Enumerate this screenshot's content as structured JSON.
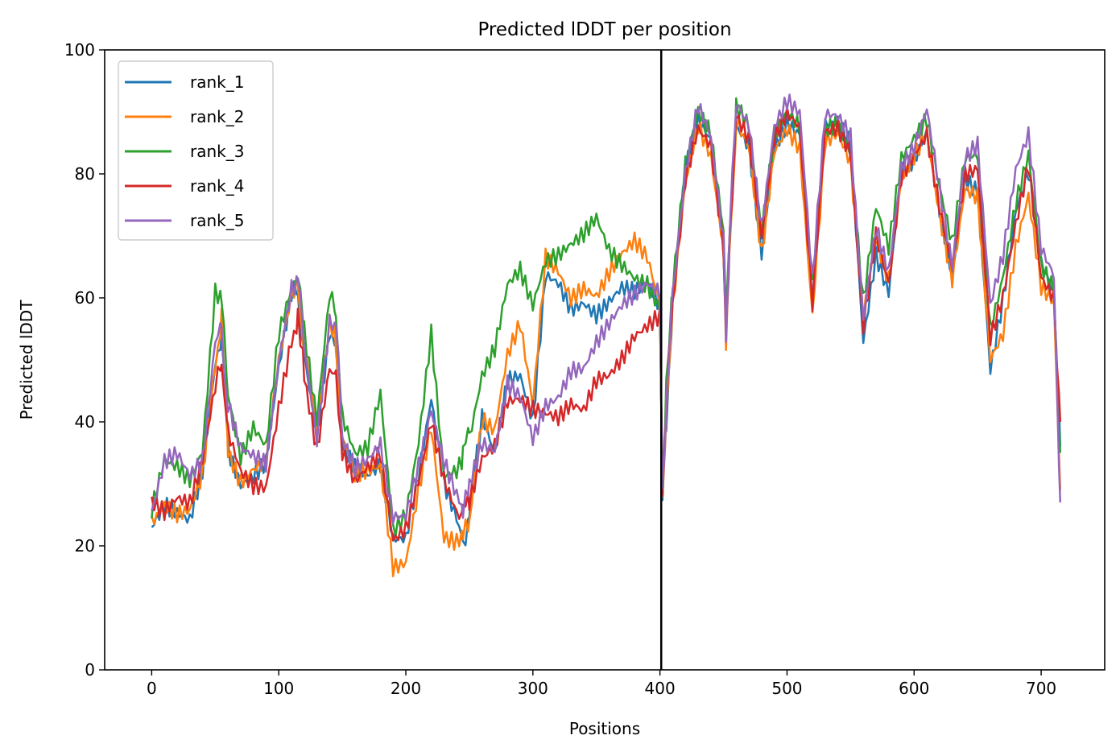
{
  "chart_data": {
    "type": "line",
    "title": "Predicted lDDT per position",
    "xlabel": "Positions",
    "ylabel": "Predicted lDDT",
    "xlim": [
      -37,
      750
    ],
    "ylim": [
      0,
      100
    ],
    "xticks": [
      0,
      100,
      200,
      300,
      400,
      500,
      600,
      700
    ],
    "yticks": [
      0,
      20,
      40,
      60,
      80,
      100
    ],
    "grid": false,
    "legend_position": "top-left",
    "vertical_line": {
      "x": 401,
      "color": "#000000"
    },
    "x": [
      0,
      10,
      20,
      30,
      40,
      50,
      55,
      60,
      70,
      80,
      90,
      100,
      110,
      115,
      120,
      130,
      140,
      145,
      150,
      160,
      170,
      180,
      190,
      200,
      210,
      220,
      230,
      240,
      245,
      250,
      260,
      270,
      280,
      290,
      300,
      310,
      320,
      330,
      340,
      350,
      360,
      370,
      380,
      390,
      400,
      402,
      405,
      410,
      420,
      430,
      440,
      450,
      452,
      455,
      460,
      470,
      480,
      490,
      500,
      510,
      520,
      530,
      540,
      550,
      560,
      570,
      580,
      590,
      600,
      610,
      620,
      630,
      640,
      650,
      660,
      670,
      680,
      690,
      700,
      710,
      715
    ],
    "series": [
      {
        "name": "rank_1",
        "color": "#1f77b4",
        "values": [
          23,
          27,
          26,
          25,
          33,
          50,
          54,
          36,
          30,
          31,
          33,
          48,
          60,
          61,
          50,
          37,
          54,
          52,
          36,
          33,
          32,
          34,
          22,
          22,
          32,
          44,
          30,
          24,
          20,
          25,
          40,
          34,
          46,
          47,
          40,
          64,
          63,
          59,
          60,
          58,
          60,
          62,
          61,
          62,
          58,
          28,
          40,
          60,
          80,
          88,
          85,
          68,
          53,
          70,
          88,
          85,
          68,
          85,
          89,
          87,
          60,
          88,
          88,
          84,
          52,
          66,
          60,
          80,
          82,
          87,
          75,
          64,
          80,
          78,
          49,
          60,
          74,
          80,
          65,
          60,
          36
        ]
      },
      {
        "name": "rank_2",
        "color": "#ff7f0e",
        "values": [
          23,
          26,
          25,
          26,
          32,
          50,
          56,
          36,
          31,
          33,
          34,
          50,
          60,
          62,
          52,
          38,
          55,
          53,
          37,
          31,
          32,
          33,
          17,
          18,
          30,
          40,
          22,
          21,
          22,
          24,
          40,
          38,
          50,
          55,
          42,
          66,
          64,
          60,
          62,
          61,
          65,
          68,
          70,
          67,
          59,
          27,
          42,
          58,
          78,
          87,
          82,
          67,
          52,
          69,
          88,
          84,
          67,
          84,
          88,
          85,
          58,
          86,
          87,
          82,
          57,
          69,
          62,
          78,
          82,
          86,
          73,
          63,
          78,
          77,
          51,
          55,
          69,
          77,
          62,
          59,
          29
        ]
      },
      {
        "name": "rank_3",
        "color": "#2ca02c",
        "values": [
          25,
          33,
          32,
          30,
          35,
          61,
          60,
          45,
          35,
          40,
          37,
          55,
          62,
          64,
          55,
          40,
          60,
          58,
          40,
          34,
          35,
          44,
          22,
          25,
          37,
          55,
          32,
          33,
          35,
          38,
          48,
          52,
          62,
          64,
          58,
          65,
          66,
          68,
          70,
          73,
          68,
          66,
          64,
          63,
          59,
          29,
          45,
          62,
          82,
          90,
          86,
          70,
          56,
          72,
          90,
          87,
          70,
          86,
          90,
          88,
          63,
          88,
          89,
          84,
          60,
          75,
          68,
          82,
          85,
          88,
          77,
          68,
          82,
          83,
          55,
          64,
          76,
          84,
          66,
          62,
          35
        ]
      },
      {
        "name": "rank_4",
        "color": "#d62728",
        "values": [
          27,
          25,
          27,
          26,
          33,
          45,
          50,
          38,
          32,
          30,
          30,
          43,
          54,
          56,
          48,
          36,
          49,
          47,
          35,
          30,
          32,
          34,
          20,
          22,
          30,
          40,
          31,
          26,
          25,
          28,
          35,
          37,
          44,
          44,
          42,
          41,
          40,
          42,
          41,
          46,
          47,
          50,
          54,
          56,
          58,
          30,
          42,
          60,
          80,
          88,
          85,
          68,
          54,
          70,
          89,
          85,
          69,
          85,
          89,
          87,
          59,
          87,
          88,
          84,
          56,
          71,
          63,
          80,
          83,
          86,
          74,
          64,
          79,
          80,
          53,
          60,
          72,
          82,
          64,
          61,
          40
        ]
      },
      {
        "name": "rank_5",
        "color": "#9467bd",
        "values": [
          26,
          34,
          35,
          31,
          33,
          52,
          55,
          42,
          35,
          34,
          33,
          50,
          62,
          63,
          53,
          38,
          57,
          56,
          38,
          33,
          34,
          36,
          24,
          24,
          32,
          41,
          33,
          28,
          26,
          30,
          37,
          36,
          47,
          45,
          38,
          43,
          44,
          48,
          48,
          52,
          55,
          58,
          60,
          62,
          61,
          28,
          43,
          61,
          81,
          92,
          87,
          70,
          55,
          71,
          92,
          88,
          71,
          87,
          91,
          89,
          62,
          89,
          89,
          86,
          57,
          72,
          65,
          82,
          85,
          91,
          78,
          65,
          82,
          84,
          58,
          66,
          80,
          86,
          68,
          64,
          27
        ]
      }
    ]
  }
}
